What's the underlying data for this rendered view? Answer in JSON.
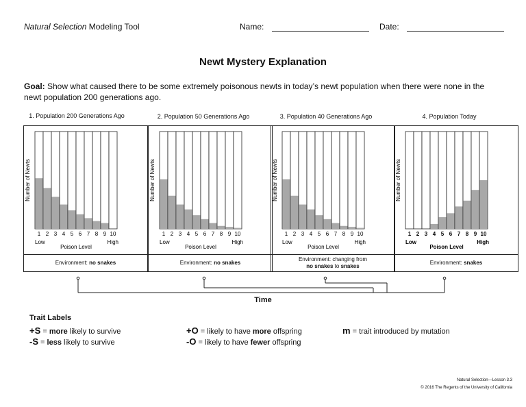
{
  "header": {
    "tool_italic": "Natural Selection",
    "tool_rest": " Modeling Tool",
    "name_label": "Name:",
    "date_label": "Date:"
  },
  "title": "Newt Mystery Explanation",
  "goal": {
    "label": "Goal:",
    "text": " Show what caused there to be some extremely poisonous newts in today’s newt population when there were none in the newt population 200 generations ago."
  },
  "chart_data": [
    {
      "type": "bar",
      "title": "1. Population 200 Generations Ago",
      "categories": [
        "1",
        "2",
        "3",
        "4",
        "5",
        "6",
        "7",
        "8",
        "9",
        "10"
      ],
      "values": [
        52,
        42,
        33,
        25,
        19,
        15,
        11,
        8,
        6,
        0
      ],
      "ylim": [
        0,
        100
      ],
      "ylabel": "Number of Newts",
      "xlabel": "Poison Level",
      "x_low": "Low",
      "x_high": "High",
      "environment_prefix": "Environment: ",
      "environment": "no snakes"
    },
    {
      "type": "bar",
      "title": "2. Population 50 Generations Ago",
      "categories": [
        "1",
        "2",
        "3",
        "4",
        "5",
        "6",
        "7",
        "8",
        "9",
        "10"
      ],
      "values": [
        51,
        34,
        25,
        20,
        14,
        10,
        6,
        3,
        2,
        1
      ],
      "ylim": [
        0,
        100
      ],
      "ylabel": "Number of Newts",
      "xlabel": "Poison Level",
      "x_low": "Low",
      "x_high": "High",
      "environment_prefix": "Environment: ",
      "environment": "no snakes"
    },
    {
      "type": "bar",
      "title": "3. Population 40 Generations Ago",
      "categories": [
        "1",
        "2",
        "3",
        "4",
        "5",
        "6",
        "7",
        "8",
        "9",
        "10"
      ],
      "values": [
        51,
        34,
        25,
        20,
        14,
        10,
        6,
        3,
        2,
        1
      ],
      "ylim": [
        0,
        100
      ],
      "ylabel": "Number of Newts",
      "xlabel": "Poison Level",
      "x_low": "Low",
      "x_high": "High",
      "environment_prefix": "Environment: changing from",
      "environment_line2_a": "no snakes",
      "environment_line2_mid": " to ",
      "environment_line2_b": "snakes"
    },
    {
      "type": "bar",
      "title": "4. Population Today",
      "categories": [
        "1",
        "2",
        "3",
        "4",
        "5",
        "6",
        "7",
        "8",
        "9",
        "10"
      ],
      "values": [
        0,
        0,
        0,
        5,
        12,
        16,
        23,
        29,
        40,
        50
      ],
      "ylim": [
        0,
        100
      ],
      "ylabel": "Number of Newts",
      "xlabel": "Poison Level",
      "x_low": "Low",
      "x_high": "High",
      "environment_prefix": "Environment: ",
      "environment": "snakes"
    }
  ],
  "time_label": "Time",
  "traits": {
    "title": "Trait Labels",
    "s_plus": {
      "sym": "+S",
      "pre": " = ",
      "bold": "more",
      "post": " likely to survive"
    },
    "s_minus": {
      "sym": "-S",
      "pre": " = ",
      "bold": "less",
      "post": " likely to survive"
    },
    "o_plus": {
      "sym": "+O",
      "pre": " = likely to have ",
      "bold": "more",
      "post": " offspring"
    },
    "o_minus": {
      "sym": "-O",
      "pre": " = likely to have ",
      "bold": "fewer",
      "post": " offspring"
    },
    "m": {
      "sym": "m",
      "post": " = trait introduced by mutation"
    }
  },
  "footer": {
    "lesson": "Natural Selection—Lesson 3.3",
    "copyright": "© 2016 The Regents of the University of California"
  },
  "colors": {
    "bar_fill": "#a8a8a8",
    "line": "#222222"
  }
}
